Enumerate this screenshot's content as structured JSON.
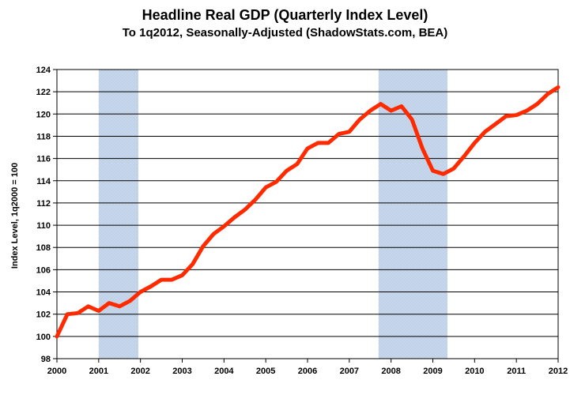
{
  "chart_data": {
    "type": "line",
    "title": "Headline Real GDP (Quarterly Index Level)",
    "subtitle": "To 1q2012, Seasonally-Adjusted (ShadowStats.com, BEA)",
    "xlabel": "",
    "ylabel": "Index Level, 1q2000 = 100",
    "xlim": [
      2000,
      2012
    ],
    "ylim": [
      98,
      124
    ],
    "yticks": [
      98,
      100,
      102,
      104,
      106,
      108,
      110,
      112,
      114,
      116,
      118,
      120,
      122,
      124
    ],
    "xticks": [
      2000,
      2001,
      2002,
      2003,
      2004,
      2005,
      2006,
      2007,
      2008,
      2009,
      2010,
      2011,
      2012
    ],
    "grid": true,
    "recessions": [
      [
        2001.0,
        2001.95
      ],
      [
        2007.7,
        2009.35
      ]
    ],
    "colors": {
      "line": "#ff2a00",
      "recession_fill": "#c8d8ec",
      "grid": "#000000"
    },
    "series": [
      {
        "name": "Headline Real GDP",
        "x": [
          2000.0,
          2000.25,
          2000.5,
          2000.75,
          2001.0,
          2001.25,
          2001.5,
          2001.75,
          2002.0,
          2002.25,
          2002.5,
          2002.75,
          2003.0,
          2003.25,
          2003.5,
          2003.75,
          2004.0,
          2004.25,
          2004.5,
          2004.75,
          2005.0,
          2005.25,
          2005.5,
          2005.75,
          2006.0,
          2006.25,
          2006.5,
          2006.75,
          2007.0,
          2007.25,
          2007.5,
          2007.75,
          2008.0,
          2008.25,
          2008.5,
          2008.75,
          2009.0,
          2009.25,
          2009.5,
          2009.75,
          2010.0,
          2010.25,
          2010.5,
          2010.75,
          2011.0,
          2011.25,
          2011.5,
          2011.75,
          2012.0
        ],
        "values": [
          100.0,
          102.0,
          102.1,
          102.7,
          102.3,
          103.0,
          102.7,
          103.2,
          104.0,
          104.5,
          105.1,
          105.1,
          105.5,
          106.5,
          108.1,
          109.2,
          109.9,
          110.7,
          111.4,
          112.3,
          113.4,
          113.9,
          114.9,
          115.5,
          116.9,
          117.4,
          117.4,
          118.2,
          118.4,
          119.5,
          120.3,
          120.9,
          120.3,
          120.7,
          119.5,
          116.9,
          114.9,
          114.6,
          115.1,
          116.2,
          117.4,
          118.4,
          119.1,
          119.8,
          119.9,
          120.3,
          120.9,
          121.8,
          122.4
        ]
      }
    ]
  }
}
